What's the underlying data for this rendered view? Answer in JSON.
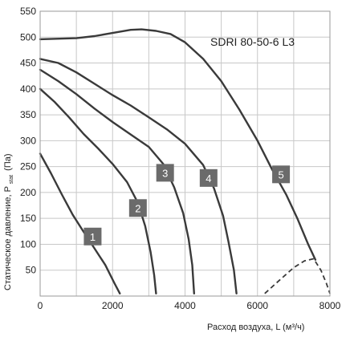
{
  "chart_data": {
    "type": "line",
    "model_label": "SDRI 80-50-6 L3",
    "xlabel": "Расход воздуха, L (м³/ч)",
    "ylabel": "Статическое давление, P",
    "ylabel_subscript": "stat",
    "ylabel_suffix": "(Па)",
    "xlim": [
      0,
      8000
    ],
    "ylim": [
      0,
      550
    ],
    "x_ticks": [
      "0",
      "2000",
      "4000",
      "6000",
      "8000"
    ],
    "y_ticks": [
      "50",
      "100",
      "150",
      "200",
      "250",
      "300",
      "350",
      "400",
      "450",
      "500",
      "550"
    ],
    "grid": true,
    "colors": {
      "curve": "#3a3a3a",
      "grid": "#c8c8c8",
      "badge": "#6b6b6b",
      "limit": "#3a3a3a"
    },
    "series": [
      {
        "name": "1",
        "label_at": [
          1450,
          115
        ],
        "points": [
          [
            0,
            275
          ],
          [
            300,
            237
          ],
          [
            600,
            196
          ],
          [
            900,
            157
          ],
          [
            1200,
            124
          ],
          [
            1500,
            92
          ],
          [
            1800,
            60
          ],
          [
            2050,
            25
          ],
          [
            2200,
            5
          ]
        ]
      },
      {
        "name": "2",
        "label_at": [
          2700,
          170
        ],
        "points": [
          [
            0,
            400
          ],
          [
            400,
            375
          ],
          [
            800,
            345
          ],
          [
            1200,
            313
          ],
          [
            1600,
            285
          ],
          [
            2000,
            255
          ],
          [
            2400,
            220
          ],
          [
            2700,
            180
          ],
          [
            2900,
            135
          ],
          [
            3050,
            85
          ],
          [
            3150,
            40
          ],
          [
            3200,
            5
          ]
        ]
      },
      {
        "name": "3",
        "label_at": [
          3450,
          238
        ],
        "points": [
          [
            0,
            437
          ],
          [
            500,
            415
          ],
          [
            1000,
            390
          ],
          [
            1500,
            362
          ],
          [
            2000,
            336
          ],
          [
            2500,
            312
          ],
          [
            3000,
            288
          ],
          [
            3400,
            255
          ],
          [
            3700,
            210
          ],
          [
            3950,
            160
          ],
          [
            4100,
            110
          ],
          [
            4200,
            60
          ],
          [
            4250,
            5
          ]
        ]
      },
      {
        "name": "4",
        "label_at": [
          4650,
          228
        ],
        "points": [
          [
            0,
            458
          ],
          [
            500,
            450
          ],
          [
            1000,
            432
          ],
          [
            1500,
            410
          ],
          [
            2000,
            388
          ],
          [
            2500,
            368
          ],
          [
            3000,
            345
          ],
          [
            3500,
            322
          ],
          [
            4000,
            294
          ],
          [
            4500,
            253
          ],
          [
            4800,
            208
          ],
          [
            5050,
            155
          ],
          [
            5200,
            105
          ],
          [
            5350,
            50
          ],
          [
            5420,
            5
          ]
        ]
      },
      {
        "name": "5",
        "label_at": [
          6650,
          235
        ],
        "points": [
          [
            0,
            496
          ],
          [
            1000,
            498
          ],
          [
            1500,
            502
          ],
          [
            2000,
            508
          ],
          [
            2500,
            514
          ],
          [
            2800,
            515
          ],
          [
            3200,
            512
          ],
          [
            3600,
            506
          ],
          [
            4000,
            490
          ],
          [
            4500,
            458
          ],
          [
            5000,
            415
          ],
          [
            5500,
            360
          ],
          [
            6000,
            300
          ],
          [
            6400,
            245
          ],
          [
            6800,
            195
          ],
          [
            7100,
            150
          ],
          [
            7400,
            100
          ],
          [
            7600,
            70
          ]
        ]
      }
    ],
    "limit_line": {
      "style": "dashed",
      "points": [
        [
          6200,
          5
        ],
        [
          6600,
          30
        ],
        [
          7000,
          55
        ],
        [
          7300,
          68
        ],
        [
          7550,
          72
        ],
        [
          7750,
          50
        ],
        [
          7900,
          25
        ],
        [
          8000,
          5
        ]
      ]
    }
  }
}
